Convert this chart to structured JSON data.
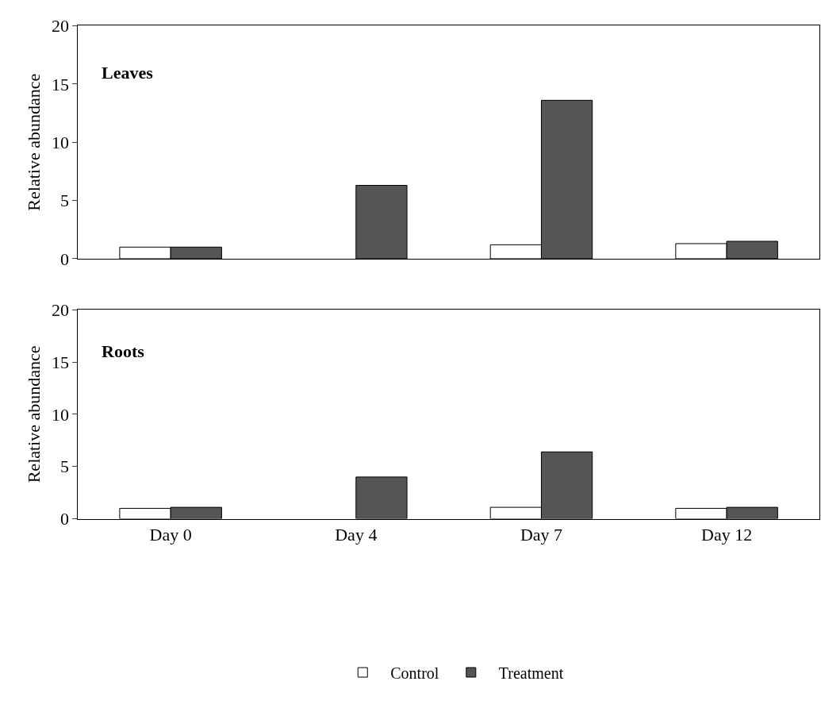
{
  "chart_data": [
    {
      "type": "bar",
      "ylabel": "Relative abundance",
      "categories": [
        null,
        null,
        null,
        null
      ],
      "ylim": [
        0,
        20
      ],
      "yticks": [
        0,
        5,
        10,
        15,
        20
      ],
      "tick_labels": "y",
      "annotations": [
        "Leaves"
      ],
      "legend": false,
      "series": [
        {
          "color": "#ffffff",
          "values": [
            1.0,
            null,
            1.2,
            1.3
          ]
        },
        {
          "color": "#555555",
          "values": [
            1.0,
            6.3,
            13.6,
            1.5
          ]
        }
      ]
    },
    {
      "type": "bar",
      "ylabel": "Relative abundance",
      "categories": [
        "Day 0",
        "Day 4",
        "Day 7",
        "Day 12"
      ],
      "ylim": [
        0,
        20
      ],
      "yticks": [
        0,
        5,
        10,
        15,
        20
      ],
      "annotations": [
        "Roots"
      ],
      "legend": "bottom",
      "series": [
        {
          "name": "Control",
          "color": "#ffffff",
          "values": [
            1.0,
            null,
            1.1,
            1.0
          ]
        },
        {
          "name": "Treatment",
          "color": "#555555",
          "values": [
            1.1,
            4.0,
            6.4,
            1.1
          ]
        }
      ]
    }
  ]
}
